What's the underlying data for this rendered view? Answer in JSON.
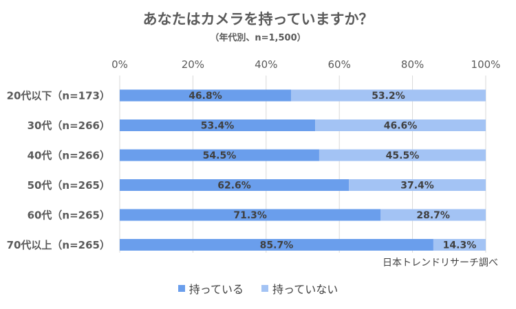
{
  "chart_data": {
    "type": "bar",
    "orientation": "horizontal",
    "stacked": true,
    "title": "あなたはカメラを持っていますか？",
    "subtitle": "（年代別、n=1,500）",
    "categories": [
      "20代以下（n=173）",
      "30代（n=266）",
      "40代（n=266）",
      "50代（n=265）",
      "60代（n=265）",
      "70代以上（n=265）"
    ],
    "series": [
      {
        "name": "持っている",
        "color": "#6A9EEC",
        "values": [
          46.8,
          53.4,
          54.5,
          62.6,
          71.3,
          85.7
        ],
        "labels": [
          "46.8%",
          "53.4%",
          "54.5%",
          "62.6%",
          "71.3%",
          "85.7%"
        ]
      },
      {
        "name": "持っていない",
        "color": "#A3C3F4",
        "values": [
          53.2,
          46.6,
          45.5,
          37.4,
          28.7,
          14.3
        ],
        "labels": [
          "53.2%",
          "46.6%",
          "45.5%",
          "37.4%",
          "28.7%",
          "14.3%"
        ]
      }
    ],
    "xlim": [
      0,
      100
    ],
    "xticks": [
      0,
      20,
      40,
      60,
      80,
      100
    ],
    "xtick_labels": [
      "0%",
      "20%",
      "40%",
      "60%",
      "80%",
      "100%"
    ],
    "grid": "vertical",
    "axis_position": "top",
    "legend": "bottom"
  },
  "source": "日本トレンドリサーチ調べ"
}
